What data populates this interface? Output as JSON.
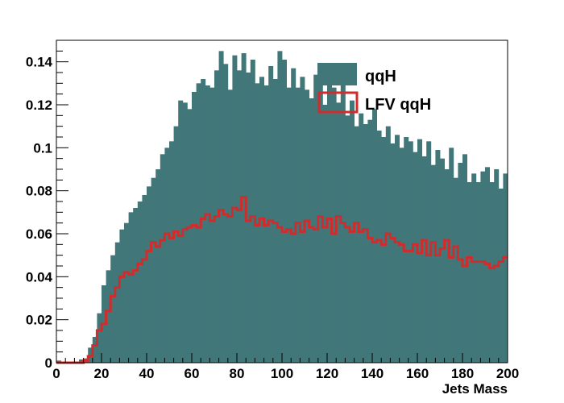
{
  "chart_data": {
    "type": "bar",
    "title": "",
    "xlabel": "Jets Mass",
    "ylabel": "",
    "xlim": [
      0,
      200
    ],
    "ylim": [
      0,
      0.15
    ],
    "bin_width": 2,
    "x_ticks": [
      0,
      20,
      40,
      60,
      80,
      100,
      120,
      140,
      160,
      180,
      200
    ],
    "y_ticks": [
      0,
      0.02,
      0.04,
      0.06,
      0.08,
      0.1,
      0.12,
      0.14
    ],
    "y_tick_labels": [
      "0",
      "0.02",
      "0.04",
      "0.06",
      "0.08",
      "0.1",
      "0.12",
      "0.14"
    ],
    "x_tick_labels": [
      "0",
      "20",
      "40",
      "60",
      "80",
      "100",
      "120",
      "140",
      "160",
      "180",
      "200"
    ],
    "legend_position": "top-right",
    "grid": false,
    "series": [
      {
        "name": "qqH",
        "style": "filled histogram",
        "color": "#42777a",
        "values": [
          0.001,
          0.0005,
          0,
          0,
          0,
          0.0015,
          0.002,
          0.007,
          0.012,
          0.023,
          0.036,
          0.043,
          0.05,
          0.056,
          0.062,
          0.065,
          0.07,
          0.072,
          0.075,
          0.078,
          0.082,
          0.086,
          0.09,
          0.097,
          0.1,
          0.103,
          0.11,
          0.122,
          0.121,
          0.118,
          0.126,
          0.13,
          0.132,
          0.129,
          0.128,
          0.136,
          0.145,
          0.139,
          0.127,
          0.143,
          0.136,
          0.144,
          0.135,
          0.141,
          0.13,
          0.133,
          0.129,
          0.138,
          0.132,
          0.145,
          0.141,
          0.128,
          0.137,
          0.128,
          0.133,
          0.127,
          0.123,
          0.134,
          0.137,
          0.12,
          0.132,
          0.128,
          0.121,
          0.133,
          0.115,
          0.122,
          0.11,
          0.116,
          0.111,
          0.113,
          0.118,
          0.108,
          0.105,
          0.11,
          0.102,
          0.106,
          0.1,
          0.105,
          0.103,
          0.098,
          0.104,
          0.096,
          0.103,
          0.092,
          0.099,
          0.095,
          0.09,
          0.1,
          0.086,
          0.093,
          0.097,
          0.084,
          0.088,
          0.084,
          0.089,
          0.091,
          0.084,
          0.09,
          0.081,
          0.088
        ]
      },
      {
        "name": "LFV qqH",
        "style": "line histogram",
        "color": "#d22b2b",
        "values": [
          0,
          0,
          0,
          0,
          0,
          0,
          0.001,
          0.003,
          0.008,
          0.015,
          0.018,
          0.024,
          0.031,
          0.035,
          0.04,
          0.042,
          0.041,
          0.043,
          0.046,
          0.048,
          0.052,
          0.056,
          0.054,
          0.057,
          0.06,
          0.058,
          0.061,
          0.059,
          0.062,
          0.063,
          0.064,
          0.063,
          0.067,
          0.069,
          0.066,
          0.068,
          0.071,
          0.069,
          0.068,
          0.072,
          0.071,
          0.077,
          0.066,
          0.068,
          0.064,
          0.067,
          0.064,
          0.066,
          0.065,
          0.063,
          0.061,
          0.062,
          0.06,
          0.065,
          0.061,
          0.066,
          0.063,
          0.062,
          0.068,
          0.063,
          0.067,
          0.06,
          0.068,
          0.065,
          0.063,
          0.061,
          0.065,
          0.061,
          0.062,
          0.058,
          0.056,
          0.057,
          0.055,
          0.06,
          0.058,
          0.056,
          0.055,
          0.052,
          0.052,
          0.055,
          0.051,
          0.057,
          0.05,
          0.056,
          0.05,
          0.053,
          0.057,
          0.049,
          0.054,
          0.048,
          0.045,
          0.049,
          0.047,
          0.047,
          0.047,
          0.046,
          0.044,
          0.045,
          0.047,
          0.049
        ]
      }
    ]
  }
}
